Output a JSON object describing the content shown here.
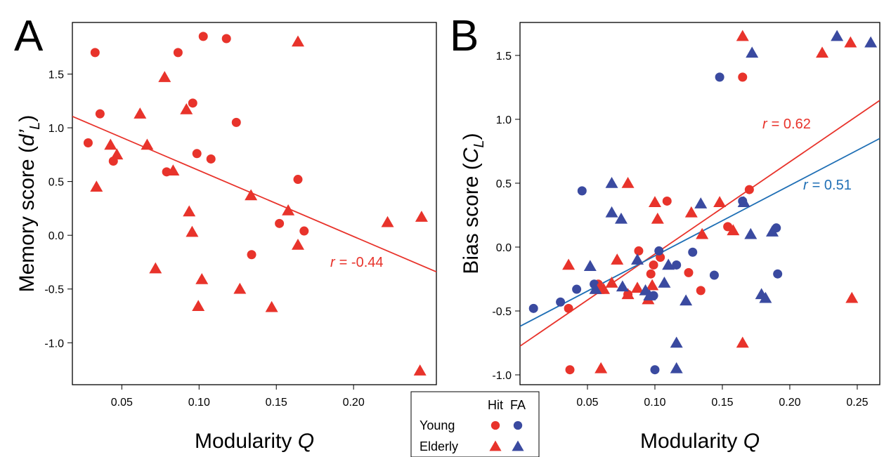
{
  "chart_data": [
    {
      "type": "scatter",
      "panel_label": "A",
      "x_label": [
        "Modularity ",
        "Q"
      ],
      "y_label": [
        "Memory score (",
        "d’",
        "L",
        ")"
      ],
      "xlim": [
        0.018,
        0.2536
      ],
      "ylim": [
        -1.39,
        1.98
      ],
      "xticks": [
        0.05,
        {
          "value": 0.1,
          "label": "0.10"
        },
        0.15,
        {
          "value": 0.2,
          "label": "0.20"
        }
      ],
      "yticks": [
        {
          "value": -1,
          "label": "-1.0"
        },
        -0.5,
        {
          "value": 0,
          "label": "0.0"
        },
        0.5,
        {
          "value": 1,
          "label": "1.0"
        },
        1.5
      ],
      "series": [
        {
          "name": "Young",
          "marker": "circle",
          "color": "#e8332b",
          "x": [
            0.0282,
            0.0327,
            0.0359,
            0.0445,
            0.079,
            0.0864,
            0.0959,
            0.0986,
            0.1027,
            0.1077,
            0.1177,
            0.1241,
            0.134,
            0.152,
            0.164,
            0.168
          ],
          "y": [
            0.86,
            1.7,
            1.13,
            0.69,
            0.59,
            1.7,
            1.23,
            0.76,
            1.85,
            0.71,
            1.83,
            1.05,
            -0.18,
            0.11,
            0.52,
            0.04
          ]
        },
        {
          "name": "Elderly",
          "marker": "triangle",
          "color": "#e8332b",
          "x": [
            0.0336,
            0.0427,
            0.0468,
            0.0618,
            0.0664,
            0.0718,
            0.0777,
            0.0832,
            0.0918,
            0.0936,
            0.0955,
            0.0995,
            0.1018,
            0.1264,
            0.1336,
            0.147,
            0.1577,
            0.164,
            0.164,
            0.222,
            0.244,
            0.243
          ],
          "y": [
            0.45,
            0.84,
            0.75,
            1.13,
            0.84,
            -0.31,
            1.47,
            0.6,
            1.17,
            0.22,
            0.03,
            -0.66,
            -0.41,
            -0.5,
            0.37,
            -0.67,
            0.23,
            1.8,
            -0.09,
            0.12,
            0.17,
            -1.26
          ]
        }
      ],
      "fit_lines": [
        {
          "color": "#e8332b",
          "x": [
            0.018,
            0.2536
          ],
          "y": [
            1.106,
            -0.34
          ],
          "symbol": "r",
          "text": "= -0.44"
        }
      ]
    },
    {
      "type": "scatter",
      "panel_label": "B",
      "x_label": [
        "Modularity ",
        "Q"
      ],
      "y_label": [
        "Bias score (",
        "C",
        "L",
        ")"
      ],
      "xlim": [
        0.0,
        0.2667
      ],
      "ylim": [
        -1.077,
        1.758
      ],
      "xticks": [
        0.05,
        {
          "value": 0.1,
          "label": "0.10"
        },
        0.15,
        {
          "value": 0.2,
          "label": "0.20"
        },
        0.25
      ],
      "yticks": [
        {
          "value": -1,
          "label": "-1.0"
        },
        -0.5,
        {
          "value": 0,
          "label": "0.0"
        },
        0.5,
        {
          "value": 1,
          "label": "1.0"
        },
        1.5
      ],
      "series": [
        {
          "name": "Young",
          "measure": "Hit",
          "marker": "circle",
          "color": "#e8332b",
          "x": [
            0.036,
            0.037,
            0.058,
            0.088,
            0.08,
            0.097,
            0.099,
            0.104,
            0.109,
            0.125,
            0.134,
            0.154,
            0.17,
            0.165
          ],
          "y": [
            -0.48,
            -0.96,
            -0.29,
            -0.03,
            -0.37,
            -0.21,
            -0.14,
            -0.08,
            0.36,
            -0.2,
            -0.34,
            0.16,
            0.45,
            1.33
          ]
        },
        {
          "name": "Young",
          "measure": "FA",
          "marker": "circle",
          "color": "#3a4aa0",
          "x": [
            0.01,
            0.03,
            0.042,
            0.046,
            0.055,
            0.1,
            0.099,
            0.103,
            0.116,
            0.128,
            0.144,
            0.148,
            0.19,
            0.191,
            0.165
          ],
          "y": [
            -0.48,
            -0.43,
            -0.33,
            0.44,
            -0.29,
            -0.96,
            -0.38,
            -0.03,
            -0.14,
            -0.04,
            -0.22,
            1.33,
            0.15,
            -0.21,
            0.36
          ]
        },
        {
          "name": "Elderly",
          "measure": "Hit",
          "marker": "triangle",
          "color": "#e8332b",
          "x": [
            0.036,
            0.06,
            0.058,
            0.062,
            0.068,
            0.072,
            0.08,
            0.08,
            0.087,
            0.095,
            0.098,
            0.1,
            0.102,
            0.127,
            0.135,
            0.148,
            0.158,
            0.165,
            0.165,
            0.224,
            0.245,
            0.246
          ],
          "y": [
            -0.14,
            -0.95,
            -0.33,
            -0.33,
            -0.28,
            -0.1,
            0.5,
            -0.37,
            -0.32,
            -0.41,
            -0.3,
            0.35,
            0.22,
            0.27,
            0.1,
            0.35,
            0.13,
            1.65,
            -0.75,
            1.52,
            1.6,
            -0.4
          ]
        },
        {
          "name": "Elderly",
          "measure": "FA",
          "marker": "triangle",
          "color": "#3a4aa0",
          "x": [
            0.052,
            0.056,
            0.068,
            0.068,
            0.075,
            0.076,
            0.087,
            0.093,
            0.096,
            0.107,
            0.11,
            0.116,
            0.116,
            0.123,
            0.134,
            0.166,
            0.171,
            0.172,
            0.179,
            0.182,
            0.187,
            0.235,
            0.26
          ],
          "y": [
            -0.15,
            -0.33,
            0.5,
            0.27,
            0.22,
            -0.31,
            -0.1,
            -0.34,
            -0.38,
            -0.28,
            -0.14,
            -0.75,
            -0.95,
            -0.42,
            0.34,
            0.35,
            0.1,
            1.52,
            -0.37,
            -0.4,
            0.12,
            1.65,
            1.6
          ]
        }
      ],
      "fit_lines": [
        {
          "color": "#e8332b",
          "x": [
            0.0,
            0.2667
          ],
          "y": [
            -0.775,
            1.148
          ],
          "symbol": "r",
          "text": "= 0.62"
        },
        {
          "color": "#1f6fb5",
          "x": [
            0.0,
            0.2667
          ],
          "y": [
            -0.62,
            0.85
          ],
          "symbol": "r",
          "text": "= 0.51"
        }
      ]
    }
  ],
  "legend": {
    "columns": [
      "Hit",
      "FA"
    ],
    "rows": [
      "Young",
      "Elderly"
    ],
    "colors": [
      "#e8332b",
      "#3a4aa0"
    ],
    "markers": [
      "circle",
      "triangle"
    ]
  }
}
